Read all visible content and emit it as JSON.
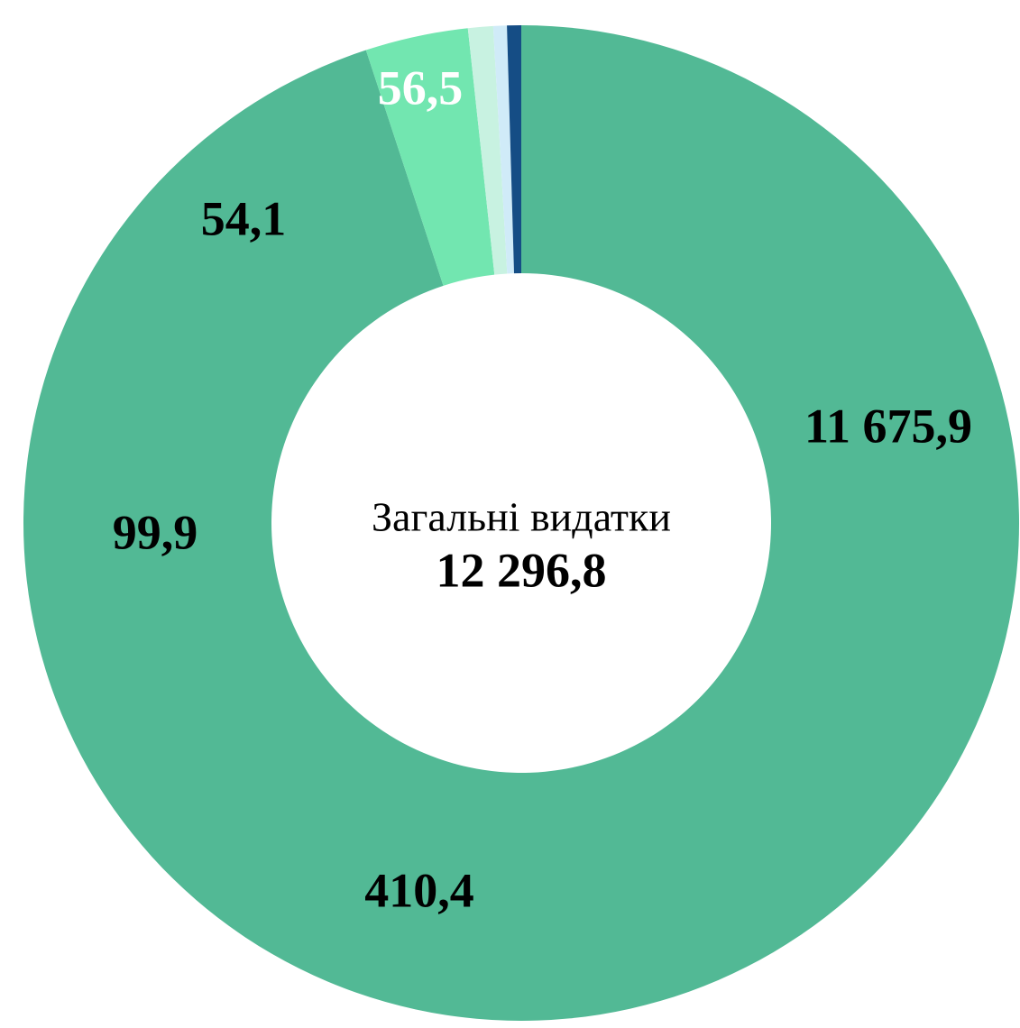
{
  "chart_data": {
    "type": "donut",
    "center_title": "Загальні видатки",
    "center_value": 12296.8,
    "center_value_label": "12 296,8",
    "categories": [
      null,
      null,
      null,
      null,
      null
    ],
    "values": [
      11675.9,
      410.4,
      99.9,
      54.1,
      56.5
    ],
    "value_labels": [
      "11 675,9",
      "410,4",
      "99,9",
      "54,1",
      "56,5"
    ],
    "colors": [
      "#52b995",
      "#72e6b0",
      "#c8f2e1",
      "#d0ebf8",
      "#154d85"
    ],
    "label_colors": [
      "#000000",
      "#000000",
      "#000000",
      "#000000",
      "#ffffff"
    ]
  }
}
